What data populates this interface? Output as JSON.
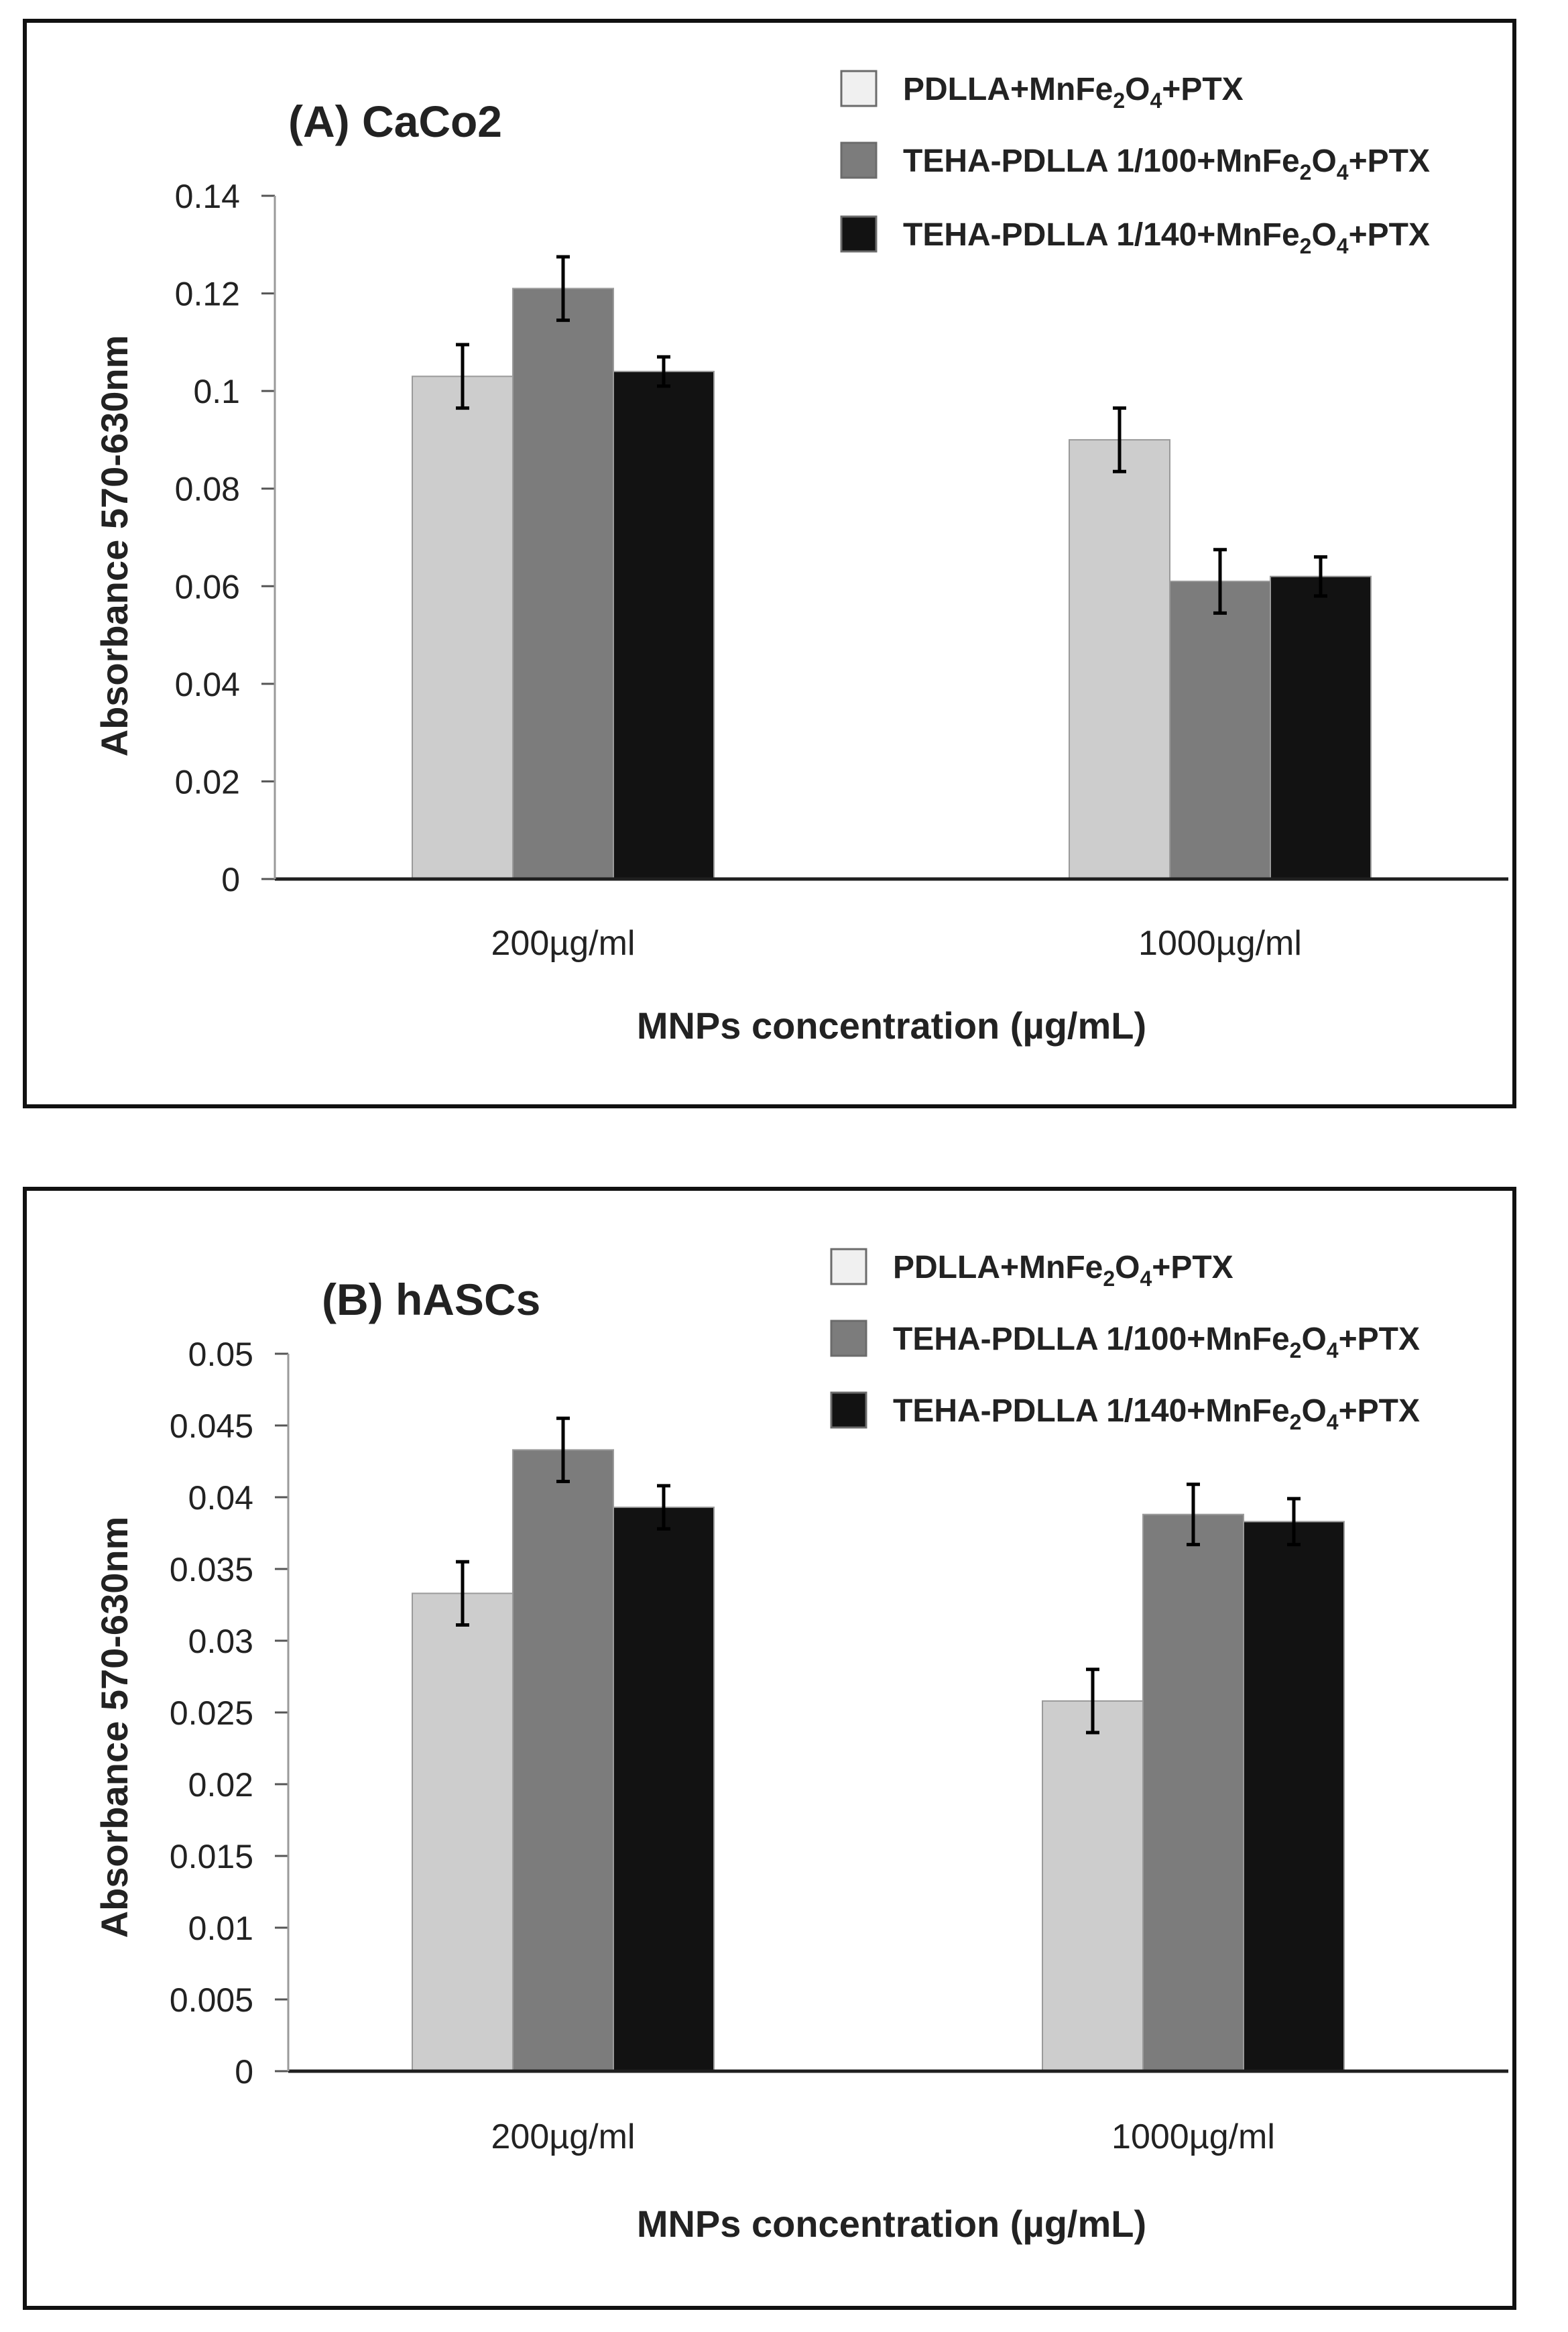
{
  "chart_data": [
    {
      "type": "bar",
      "title": "(A) CaCo2",
      "xlabel": "MNPs concentration (µg/mL)",
      "ylabel": "Absorbance 570-630nm",
      "categories": [
        "200µg/ml",
        "1000µg/ml"
      ],
      "ylim": [
        0,
        0.14
      ],
      "yticks": [
        0,
        0.02,
        0.04,
        0.06,
        0.08,
        0.1,
        0.12,
        0.14
      ],
      "ytick_labels": [
        "0",
        "0.02",
        "0.04",
        "0.06",
        "0.08",
        "0.1",
        "0.12",
        "0.14"
      ],
      "legend_position": "top-right",
      "series": [
        {
          "name_parts": [
            "PDLLA+MnFe",
            "2",
            "O",
            "4",
            "+PTX"
          ],
          "color": "#cdcdcd",
          "values": [
            0.103,
            0.09
          ],
          "errors": [
            0.0065,
            0.0065
          ]
        },
        {
          "name_parts": [
            "TEHA-PDLLA 1/100+MnFe",
            "2",
            "O",
            "4",
            "+PTX"
          ],
          "color": "#7c7c7c",
          "values": [
            0.121,
            0.061
          ],
          "errors": [
            0.0065,
            0.0065
          ]
        },
        {
          "name_parts": [
            "TEHA-PDLLA 1/140+MnFe",
            "2",
            "O",
            "4",
            "+PTX"
          ],
          "color": "#121212",
          "values": [
            0.104,
            0.062
          ],
          "errors": [
            0.003,
            0.004
          ]
        }
      ]
    },
    {
      "type": "bar",
      "title": "(B) hASCs",
      "xlabel": "MNPs concentration (µg/mL)",
      "ylabel": "Absorbance 570-630nm",
      "categories": [
        "200µg/ml",
        "1000µg/ml"
      ],
      "ylim": [
        0,
        0.05
      ],
      "yticks": [
        0,
        0.005,
        0.01,
        0.015,
        0.02,
        0.025,
        0.03,
        0.035,
        0.04,
        0.045,
        0.05
      ],
      "ytick_labels": [
        "0",
        "0.005",
        "0.01",
        "0.015",
        "0.02",
        "0.025",
        "0.03",
        "0.035",
        "0.04",
        "0.045",
        "0.05"
      ],
      "legend_position": "top-right",
      "series": [
        {
          "name_parts": [
            "PDLLA+MnFe",
            "2",
            "O",
            "4",
            "+PTX"
          ],
          "color": "#cdcdcd",
          "values": [
            0.0333,
            0.0258
          ],
          "errors": [
            0.0022,
            0.0022
          ]
        },
        {
          "name_parts": [
            "TEHA-PDLLA 1/100+MnFe",
            "2",
            "O",
            "4",
            "+PTX"
          ],
          "color": "#7c7c7c",
          "values": [
            0.0433,
            0.0388
          ],
          "errors": [
            0.0022,
            0.0021
          ]
        },
        {
          "name_parts": [
            "TEHA-PDLLA 1/140+MnFe",
            "2",
            "O",
            "4",
            "+PTX"
          ],
          "color": "#121212",
          "values": [
            0.0393,
            0.0383
          ],
          "errors": [
            0.0015,
            0.0016
          ]
        }
      ]
    }
  ]
}
